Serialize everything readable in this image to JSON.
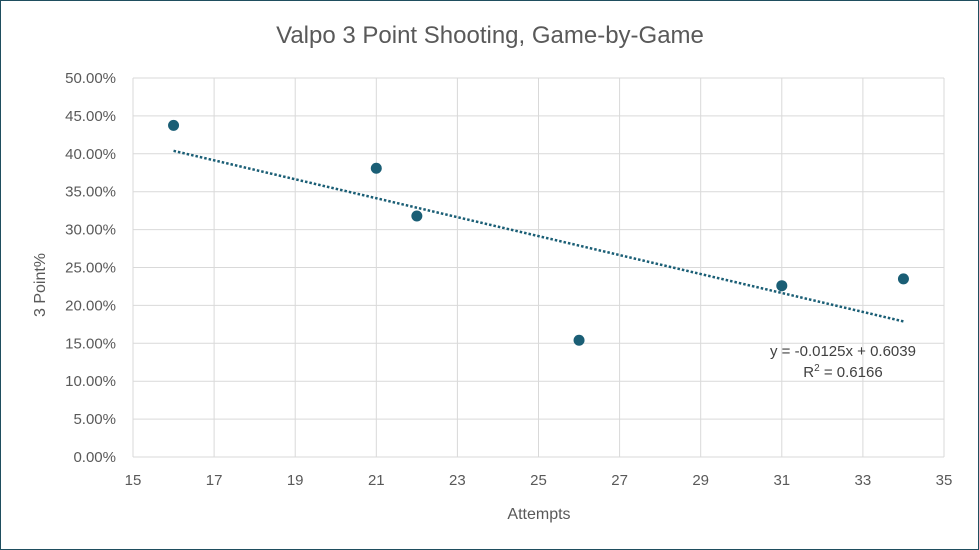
{
  "chart_data": {
    "type": "scatter",
    "title": "Valpo 3 Point Shooting, Game-by-Game",
    "xlabel": "Attempts",
    "ylabel": "3 Point%",
    "xlim": [
      15,
      35
    ],
    "ylim": [
      0,
      0.5
    ],
    "x_ticks": [
      15,
      17,
      19,
      21,
      23,
      25,
      27,
      29,
      31,
      33,
      35
    ],
    "y_ticks": [
      "0.00%",
      "5.00%",
      "10.00%",
      "15.00%",
      "20.00%",
      "25.00%",
      "30.00%",
      "35.00%",
      "40.00%",
      "45.00%",
      "50.00%"
    ],
    "grid": true,
    "series": [
      {
        "color": "#1a5e75",
        "points": [
          {
            "x": 16,
            "y": 0.4375
          },
          {
            "x": 21,
            "y": 0.381
          },
          {
            "x": 22,
            "y": 0.318
          },
          {
            "x": 26,
            "y": 0.154
          },
          {
            "x": 31,
            "y": 0.226
          },
          {
            "x": 34,
            "y": 0.235
          }
        ]
      }
    ],
    "trendline": {
      "type": "linear",
      "slope": -0.0125,
      "intercept": 0.6039,
      "x_range": [
        16,
        34
      ],
      "color": "#1a5e75",
      "style": "dotted",
      "equation_label": "y = -0.0125x + 0.6039",
      "r2_prefix": "R",
      "r2_superscript": "2",
      "r2_value": " = 0.6166"
    }
  }
}
